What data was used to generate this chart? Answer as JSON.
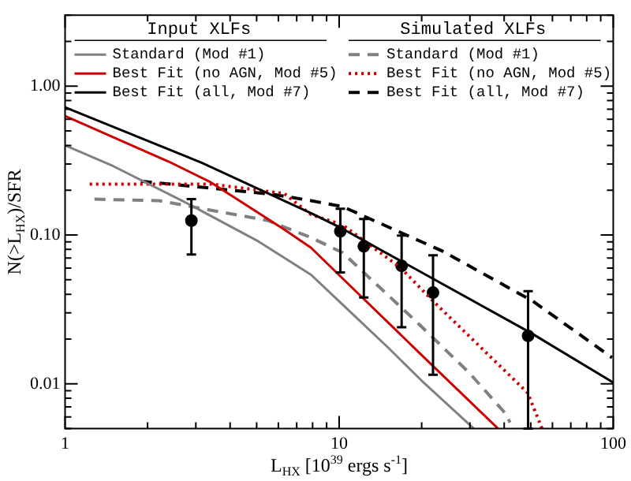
{
  "chart_data": {
    "type": "line",
    "xlabel": "L$_{HX}$ [10$^{39}$ ergs s$^{-1}$]",
    "ylabel": "N(>L$_{HX}$)/SFR",
    "log": "xy",
    "legend": "top",
    "annotations": [
      "Input XLFs",
      "Simulated XLFs"
    ],
    "xlim": [
      1,
      100
    ],
    "ylim": [
      0.005,
      3
    ],
    "xticks": [
      1,
      {
        "value": 2,
        "label": null
      },
      {
        "value": 3,
        "label": null
      },
      {
        "value": 4,
        "label": null
      },
      {
        "value": 5,
        "label": null
      },
      {
        "value": 6,
        "label": null
      },
      {
        "value": 7,
        "label": null
      },
      {
        "value": 8,
        "label": null
      },
      {
        "value": 9,
        "label": null
      },
      10,
      {
        "value": 20,
        "label": null
      },
      {
        "value": 30,
        "label": null
      },
      {
        "value": 40,
        "label": null
      },
      {
        "value": 50,
        "label": null
      },
      {
        "value": 60,
        "label": null
      },
      {
        "value": 70,
        "label": null
      },
      {
        "value": 80,
        "label": null
      },
      {
        "value": 90,
        "label": null
      },
      100
    ],
    "yticks": [
      {
        "value": 0.005,
        "label": null
      },
      {
        "value": 0.006,
        "label": null
      },
      {
        "value": 0.007,
        "label": null
      },
      {
        "value": 0.008,
        "label": null
      },
      {
        "value": 0.009,
        "label": null
      },
      0.01,
      {
        "value": 0.02,
        "label": null
      },
      {
        "value": 0.03,
        "label": null
      },
      {
        "value": 0.04,
        "label": null
      },
      {
        "value": 0.05,
        "label": null
      },
      {
        "value": 0.06,
        "label": null
      },
      {
        "value": 0.07,
        "label": null
      },
      {
        "value": 0.08,
        "label": null
      },
      {
        "value": 0.09,
        "label": null
      },
      {
        "value": 0.1,
        "label": "0.10"
      },
      {
        "value": 0.2,
        "label": null
      },
      {
        "value": 0.3,
        "label": null
      },
      {
        "value": 0.4,
        "label": null
      },
      {
        "value": 0.5,
        "label": null
      },
      {
        "value": 0.6,
        "label": null
      },
      {
        "value": 0.7,
        "label": null
      },
      {
        "value": 0.8,
        "label": null
      },
      {
        "value": 0.9,
        "label": null
      },
      {
        "value": 1,
        "label": "1.00"
      },
      {
        "value": 2,
        "label": null
      },
      {
        "value": 3,
        "label": null
      }
    ],
    "series": [
      {
        "name": "Standard (Mod #1)",
        "color": "#808080",
        "line_style": "solid",
        "x": [
          1,
          1.5,
          2.85,
          5,
          7.9,
          10.3,
          15,
          20,
          31
        ],
        "values": [
          0.4,
          0.29,
          0.16,
          0.092,
          0.054,
          0.034,
          0.0177,
          0.0105,
          0.005
        ]
      },
      {
        "name": "Best Fit (no AGN, Mod #5)",
        "color": "#cc0000",
        "line_style": "solid",
        "x": [
          1,
          2.4,
          3.4,
          6.3,
          7.9,
          10.3,
          20,
          38
        ],
        "values": [
          0.63,
          0.31,
          0.226,
          0.109,
          0.082,
          0.051,
          0.0156,
          0.005
        ]
      },
      {
        "name": "Best Fit (all, Mod #7)",
        "color": "#000000",
        "line_style": "solid",
        "x": [
          1,
          3.1,
          7.9,
          10.3,
          20,
          50,
          100
        ],
        "values": [
          0.72,
          0.31,
          0.14,
          0.11,
          0.056,
          0.022,
          0.0102
        ]
      },
      {
        "name": "Standard (Mod #1)",
        "color": "#808080",
        "line_style": "dashed",
        "x": [
          1.28,
          2.2,
          5.5,
          7.9,
          10.3,
          19.2,
          29.9,
          40.5,
          42
        ],
        "values": [
          0.174,
          0.17,
          0.125,
          0.096,
          0.076,
          0.026,
          0.0118,
          0.0063,
          0.0055
        ]
      },
      {
        "name": "Best Fit (no AGN, Mod #5)",
        "color": "#cc0000",
        "line_style": "dotted",
        "x": [
          1.23,
          3.4,
          6.3,
          7.9,
          10.3,
          16.8,
          22,
          48.7,
          55
        ],
        "values": [
          0.22,
          0.22,
          0.19,
          0.137,
          0.117,
          0.06,
          0.036,
          0.0087,
          0.005
        ]
      },
      {
        "name": "Best Fit (all, Mod #7)",
        "color": "#000000",
        "line_style": "dashed",
        "x": [
          1.89,
          5.8,
          7.9,
          10.3,
          23.8,
          50.8,
          99
        ],
        "values": [
          0.23,
          0.187,
          0.17,
          0.155,
          0.078,
          0.036,
          0.015
        ]
      },
      {
        "type": "scatter",
        "marker": "circle",
        "color": "#000000",
        "x": [
          2.89,
          10.1,
          12.3,
          16.9,
          22,
          48.9
        ],
        "values": [
          0.125,
          0.106,
          0.084,
          0.062,
          0.041,
          0.021
        ],
        "errors": [
          [
            0.074,
            0.174
          ],
          [
            0.056,
            0.15
          ],
          [
            0.038,
            0.128
          ],
          [
            0.024,
            0.099
          ],
          [
            0.0115,
            0.073
          ],
          [
            0.005,
            0.042
          ]
        ]
      }
    ]
  }
}
